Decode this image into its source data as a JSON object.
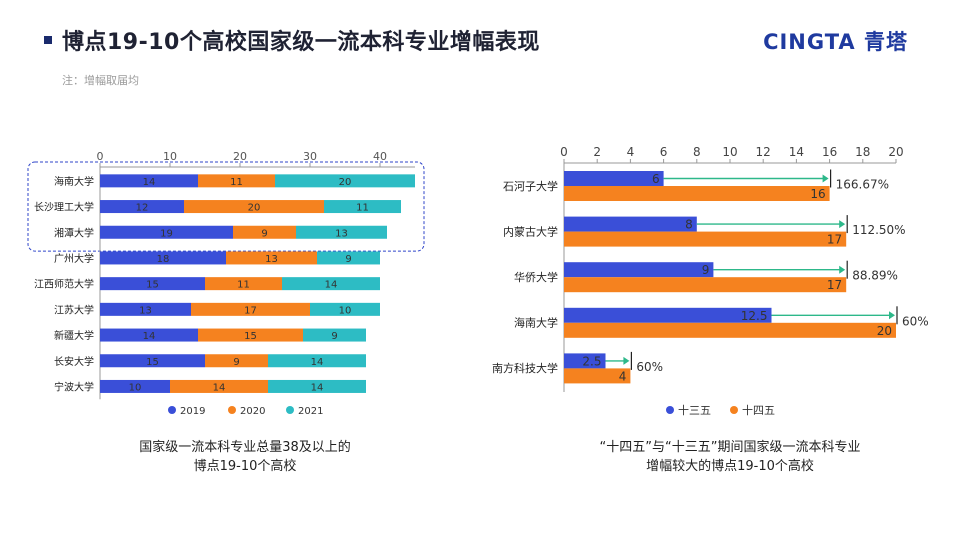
{
  "header": {
    "title": "博点19-10个高校国家级一流本科专业增幅表现",
    "note": "注：增幅取届均",
    "logo": "CINGTA 青塔"
  },
  "captions": {
    "left_line1": "国家级一流本科专业总量38及以上的",
    "left_line2": "博点19-10个高校",
    "right_line1": "“十四五”与“十三五”期间国家级一流本科专业",
    "right_line2": "增幅较大的博点19-10个高校"
  },
  "colors": {
    "blue": "#3a4fd8",
    "orange": "#f5821f",
    "teal": "#2dbcc4",
    "arrow": "#2db88a"
  },
  "chart_data": [
    {
      "type": "bar",
      "stacked": true,
      "orientation": "horizontal",
      "categories": [
        "海南大学",
        "长沙理工大学",
        "湘潭大学",
        "广州大学",
        "江西师范大学",
        "江苏大学",
        "新疆大学",
        "长安大学",
        "宁波大学"
      ],
      "series": [
        {
          "name": "2019",
          "values": [
            14,
            12,
            19,
            18,
            15,
            13,
            14,
            15,
            10
          ]
        },
        {
          "name": "2020",
          "values": [
            11,
            20,
            9,
            13,
            11,
            17,
            15,
            9,
            14
          ]
        },
        {
          "name": "2021",
          "values": [
            20,
            11,
            13,
            9,
            14,
            10,
            9,
            14,
            14
          ]
        }
      ],
      "xlim": [
        0,
        45
      ],
      "xticks": [
        "0",
        "10",
        "20",
        "30",
        "40"
      ],
      "xaxis_position": "top",
      "legend": "bottom",
      "highlight_box_rows": 3
    },
    {
      "type": "bar",
      "orientation": "horizontal",
      "categories": [
        "石河子大学",
        "内蒙古大学",
        "华侨大学",
        "海南大学",
        "南方科技大学"
      ],
      "series": [
        {
          "name": "十三五",
          "values": [
            6,
            8,
            9,
            12.5,
            2.5
          ]
        },
        {
          "name": "十四五",
          "values": [
            16,
            17,
            17,
            20,
            4
          ]
        }
      ],
      "annotations": [
        "166.67%",
        "112.50%",
        "88.89%",
        "60%",
        "60%"
      ],
      "xlim": [
        0,
        20
      ],
      "xticks": [
        "0",
        "2",
        "4",
        "6",
        "8",
        "10",
        "12",
        "14",
        "16",
        "18",
        "20"
      ],
      "xaxis_position": "top",
      "legend": "bottom"
    }
  ]
}
